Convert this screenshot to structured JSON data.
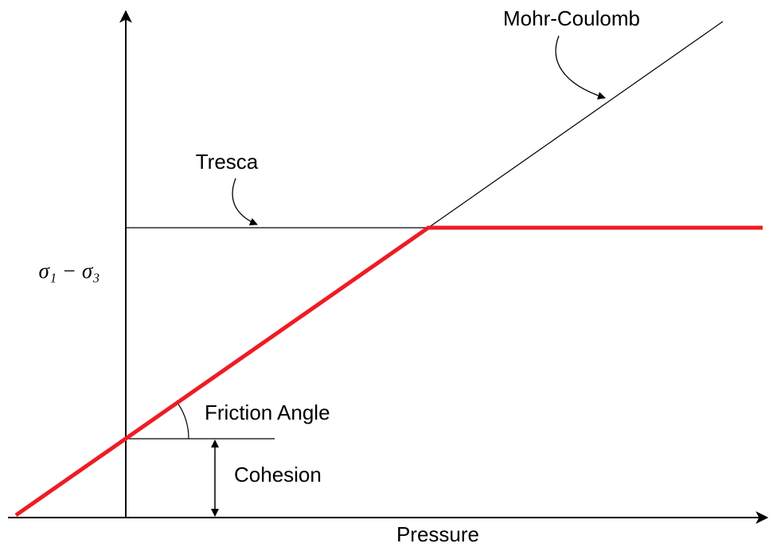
{
  "labels": {
    "mohr_coulomb": "Mohr-Coulomb",
    "tresca": "Tresca",
    "y_axis": "σ₁ − σ₃",
    "friction_angle": "Friction Angle",
    "cohesion": "Cohesion",
    "x_axis": "Pressure"
  }
}
